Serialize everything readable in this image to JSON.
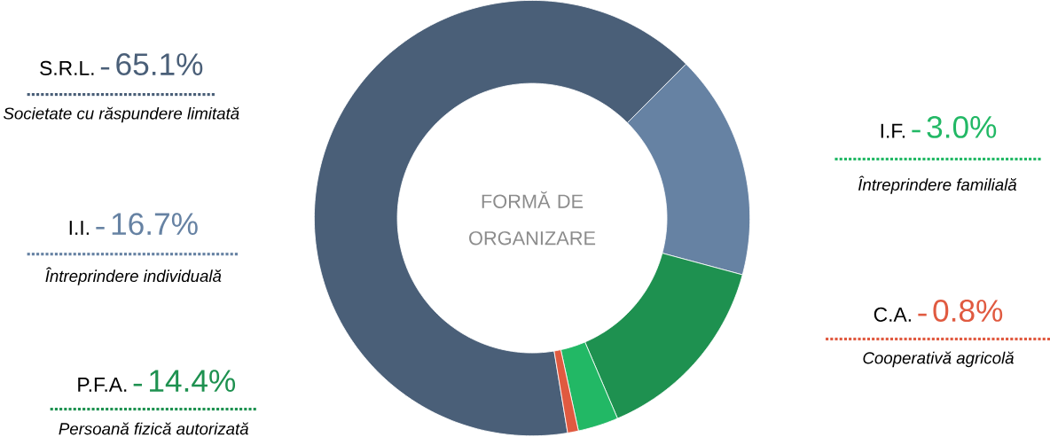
{
  "chart_data": {
    "type": "donut",
    "title": "FORMĂ DE ORGANIZARE",
    "categories": [
      "S.R.L.",
      "I.I.",
      "P.F.A.",
      "I.F.",
      "C.A."
    ],
    "values": [
      65.1,
      16.7,
      14.4,
      3.0,
      0.8
    ],
    "legend": "left",
    "value_labels": [
      "65.1%",
      "16.7%",
      "14.4%",
      "3.0%",
      "0.8%"
    ],
    "colors": [
      "#4a5f78",
      "#6682a3",
      "#1e9150",
      "#22b865",
      "#e05a40"
    ],
    "annotations": [
      "Societate cu răspundere limitată",
      "Întreprindere individuală",
      "Persoană fizică autorizată",
      "Întreprindere familială",
      "Cooperativă agricolă"
    ]
  }
}
